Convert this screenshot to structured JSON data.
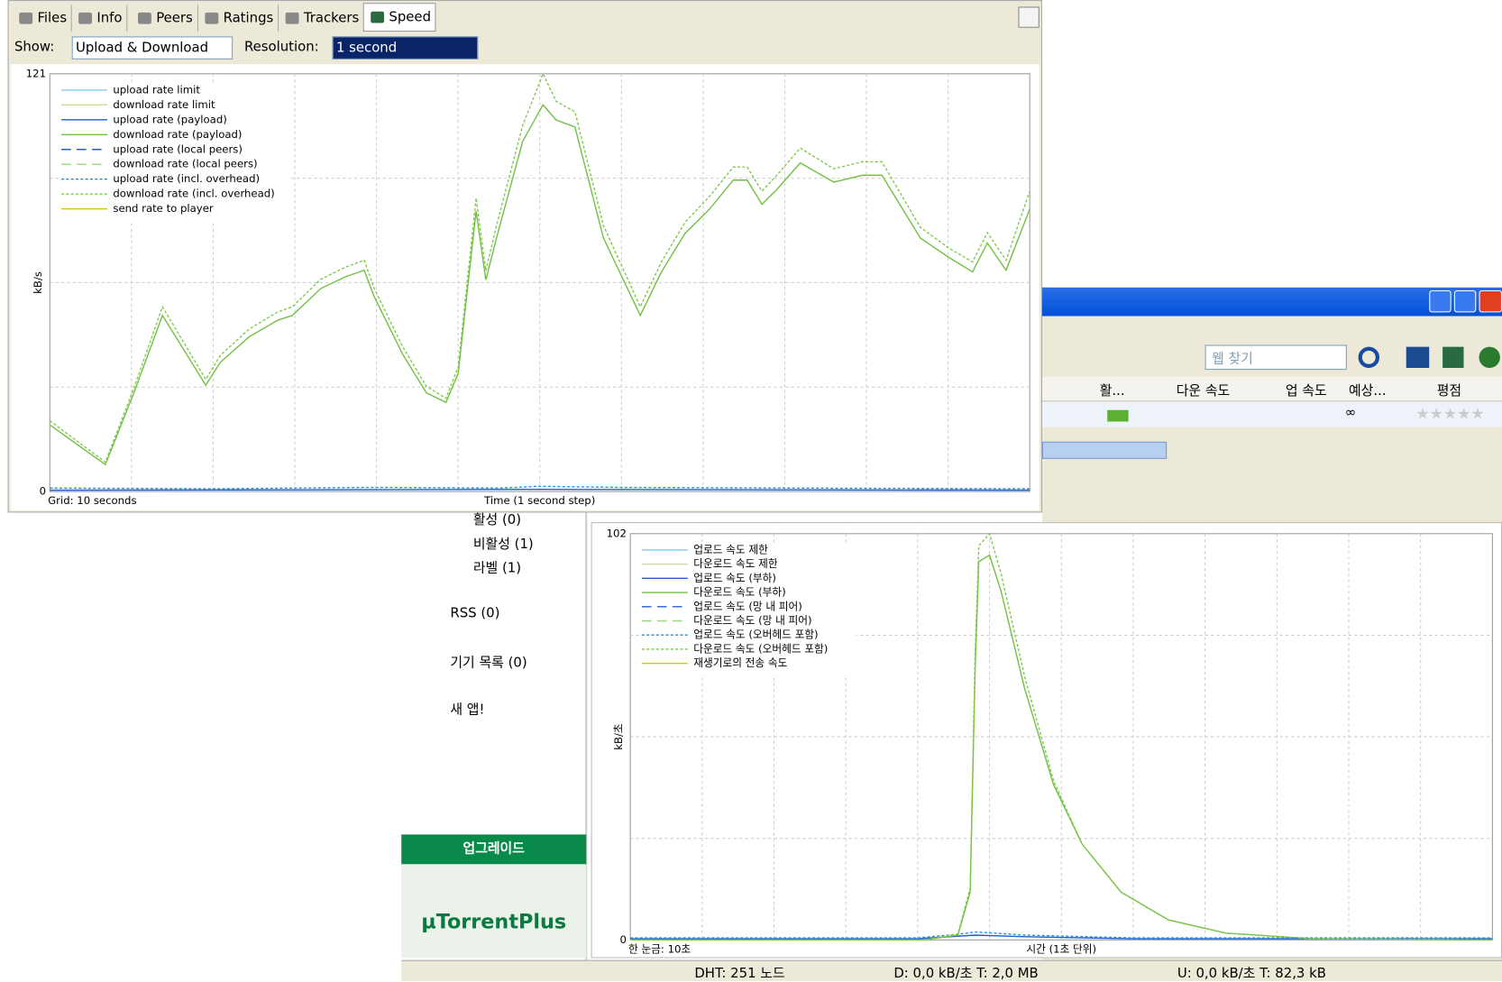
{
  "front": {
    "tabs": [
      "Files",
      "Info",
      "Peers",
      "Ratings",
      "Trackers",
      "Speed"
    ],
    "show_label": "Show:",
    "show_value": "Upload & Download",
    "resolution_label": "Resolution:",
    "resolution_value": "1 second"
  },
  "back": {
    "search_placeholder": "웹 찾기",
    "columns": [
      "활...",
      "다운 속도",
      "업 속도",
      "예상...",
      "평점"
    ],
    "eta": "∞",
    "sidebar": [
      "활성 (0)",
      "비활성 (1)",
      "라벨 (1)",
      "RSS (0)",
      "기기 목록 (0)",
      "새 앱!"
    ],
    "upgrade": "업그레이드",
    "brand": "µTorrentPlus",
    "status": [
      "DHT: 251 노드",
      "D: 0,0 kB/초 T: 2,0 MB",
      "U: 0,0 kB/초 T: 82,3 kB"
    ]
  },
  "chart_data": [
    {
      "type": "line",
      "ylabel": "kB/s",
      "xlabel": "Time (1 second step)",
      "grid_note": "Grid: 10 seconds",
      "ylim": [
        0,
        121
      ],
      "yticks": [
        0,
        121
      ],
      "xlim": [
        0,
        120
      ],
      "xgrid": [
        10,
        20,
        30,
        40,
        50,
        60,
        70,
        80,
        90,
        100,
        110
      ],
      "ygrid": [
        30.25,
        60.5,
        90.75
      ],
      "x": [
        0,
        6.8,
        10.3,
        13.8,
        19.1,
        20.9,
        24.4,
        27.9,
        29.7,
        33.2,
        36.2,
        38.5,
        39.7,
        43.2,
        46.1,
        48.5,
        50,
        52.2,
        53.4,
        54.7,
        57.9,
        60.4,
        62,
        64.3,
        67.8,
        72.3,
        74.9,
        77.8,
        80.8,
        83.7,
        85.4,
        87.2,
        89,
        91.9,
        96,
        99.5,
        101.9,
        106.6,
        110.1,
        113,
        114.8,
        117.1,
        120
      ],
      "series": [
        {
          "name": "upload rate limit",
          "color": "#8fd0f0",
          "dash": "solid"
        },
        {
          "name": "download rate limit",
          "color": "#d8d890",
          "dash": "solid"
        },
        {
          "name": "upload rate (payload)",
          "color": "#2060d0",
          "dash": "solid",
          "x": [
            0,
            30,
            60,
            90,
            120
          ],
          "values": [
            0.4,
            0.5,
            0.6,
            0.5,
            0.4
          ]
        },
        {
          "name": "download rate (payload)",
          "color": "#70c040",
          "dash": "solid",
          "values": [
            19.3,
            7.8,
            28.6,
            51,
            30.8,
            37.5,
            44.8,
            49.6,
            51,
            58.8,
            62.2,
            64.1,
            56.6,
            39.8,
            28.6,
            25.8,
            34.2,
            81.2,
            61.3,
            73.4,
            101.4,
            112,
            107.6,
            105.6,
            73.4,
            51,
            63.6,
            74.8,
            81.8,
            90.2,
            90.2,
            83.2,
            87.4,
            95.2,
            89.6,
            91.6,
            91.6,
            73.4,
            67.8,
            63.6,
            72,
            64.1,
            81.8
          ]
        },
        {
          "name": "upload rate (local peers)",
          "color": "#2060d0",
          "dash": "dash"
        },
        {
          "name": "download rate (local peers)",
          "color": "#90e070",
          "dash": "dash"
        },
        {
          "name": "upload rate (incl. overhead)",
          "color": "#3090d0",
          "dash": "dot",
          "x": [
            0,
            20,
            40,
            55,
            60,
            70,
            90,
            120
          ],
          "values": [
            1,
            0.8,
            1.2,
            1,
            1.5,
            1.2,
            1,
            0.8
          ]
        },
        {
          "name": "download rate (incl. overhead)",
          "color": "#80c850",
          "dash": "dot",
          "values": [
            20.5,
            8.5,
            30,
            53.5,
            32.5,
            39.5,
            47,
            52,
            53.5,
            61.5,
            65,
            67,
            59,
            42,
            30.5,
            27,
            36,
            85,
            64,
            77,
            106,
            121,
            113,
            110,
            77,
            53.5,
            66.5,
            78,
            85.5,
            94,
            94,
            87,
            91.5,
            99.5,
            93.5,
            95.5,
            95.5,
            76.5,
            70.5,
            66.5,
            75,
            67,
            87
          ]
        },
        {
          "name": "send rate to player",
          "color": "#c8c820",
          "dash": "solid"
        }
      ]
    },
    {
      "type": "line",
      "ylabel": "kB/초",
      "xlabel": "시간 (1초 단위)",
      "grid_note": "한 눈금: 10초",
      "ylim": [
        0,
        102
      ],
      "yticks": [
        0,
        102
      ],
      "xlim": [
        0,
        120
      ],
      "xgrid": [
        10,
        20,
        30,
        40,
        50,
        60,
        70,
        80,
        90,
        100,
        110
      ],
      "ygrid": [
        25.5,
        51,
        76.5
      ],
      "x": [
        0,
        40.9,
        45.6,
        47.3,
        48,
        48.5,
        50,
        51.6,
        54.9,
        58.9,
        62.9,
        68.3,
        74.9,
        82.9,
        94.9,
        120
      ],
      "series": [
        {
          "name": "업로드 속도 제한",
          "color": "#8fd0f0",
          "dash": "solid"
        },
        {
          "name": "다운로드 속도 제한",
          "color": "#d8d890",
          "dash": "solid"
        },
        {
          "name": "업로드 속도 (부하)",
          "color": "#2060d0",
          "dash": "solid",
          "x": [
            0,
            40,
            48,
            55,
            70,
            120
          ],
          "values": [
            0.3,
            0.3,
            1.2,
            0.8,
            0.3,
            0.3
          ]
        },
        {
          "name": "다운로드 속도 (부하)",
          "color": "#70c040",
          "dash": "solid",
          "values": [
            0,
            0,
            1.2,
            12,
            68,
            95,
            96.6,
            87.6,
            63,
            39,
            24,
            12,
            5,
            1.7,
            0.3,
            0
          ]
        },
        {
          "name": "업로드 속도 (망 내 피어)",
          "color": "#2060d0",
          "dash": "dash"
        },
        {
          "name": "다운로드 속도 (망 내 피어)",
          "color": "#90e070",
          "dash": "dash"
        },
        {
          "name": "업로드 속도 (오버헤드 포함)",
          "color": "#3090d0",
          "dash": "dot",
          "x": [
            0,
            40,
            46,
            48,
            55,
            70,
            120
          ],
          "values": [
            0.5,
            0.5,
            1.5,
            2,
            1.2,
            0.5,
            0.5
          ]
        },
        {
          "name": "다운로드 속도 (오버헤드 포함)",
          "color": "#80c850",
          "dash": "dot",
          "values": [
            0,
            0,
            1.5,
            13,
            72,
            99,
            102,
            92,
            66,
            40,
            24,
            12,
            5,
            1.7,
            0.3,
            0
          ]
        },
        {
          "name": "재생기로의 전송 속도",
          "color": "#c8c820",
          "dash": "solid"
        }
      ]
    }
  ]
}
